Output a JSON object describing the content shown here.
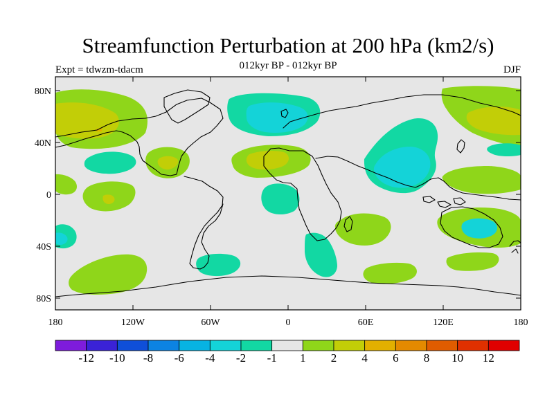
{
  "header": {
    "title": "Streamfunction Perturbation at 200 hPa (km2/s)",
    "subtitle": "012kyr BP - 012kyr BP",
    "left_label": "Expt = tdwzm-tdacm",
    "right_label": "DJF"
  },
  "axes": {
    "y_ticks": [
      "80N",
      "40N",
      "0",
      "40S",
      "80S"
    ],
    "x_ticks": [
      "180",
      "120W",
      "60W",
      "0",
      "60E",
      "120E",
      "180"
    ]
  },
  "colorbar": {
    "labels": [
      "-12",
      "-10",
      "-8",
      "-6",
      "-4",
      "-2",
      "-1",
      "1",
      "2",
      "4",
      "6",
      "8",
      "10",
      "12"
    ],
    "colors": [
      "#7e1cdc",
      "#3a22d7",
      "#0f4fd9",
      "#0c83e2",
      "#07b3e2",
      "#14d3d8",
      "#12d8a3",
      "#e6e6e6",
      "#8fd61a",
      "#c2ce07",
      "#e2b000",
      "#e48a00",
      "#e05c00",
      "#e03000",
      "#e00000"
    ]
  },
  "chart_data": {
    "type": "map-contour",
    "field": "200 hPa streamfunction perturbation",
    "units": "km2/s",
    "season": "DJF",
    "lon_range": [
      -180,
      180
    ],
    "lat_range": [
      -90,
      90
    ],
    "levels": [
      -12,
      -10,
      -8,
      -6,
      -4,
      -2,
      -1,
      1,
      2,
      4,
      6,
      8,
      10,
      12
    ]
  }
}
